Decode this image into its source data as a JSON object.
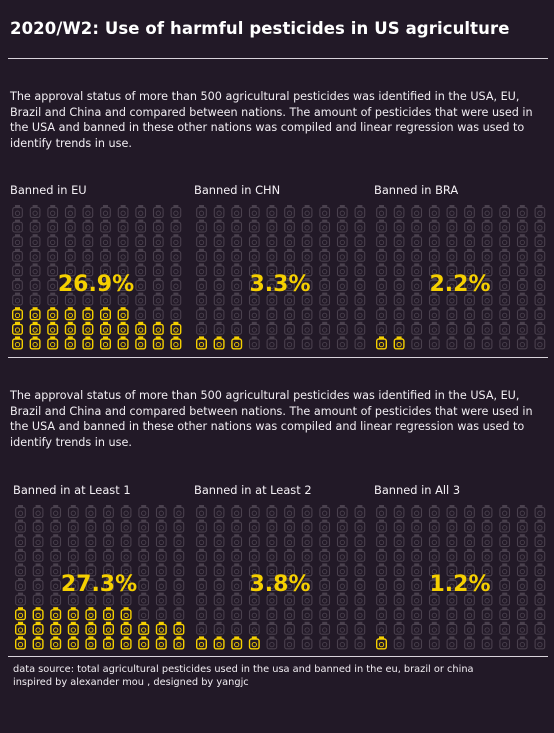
{
  "title": "2020/W2: Use of harmful pesticides in US agriculture",
  "description_1": "The approval status of more than 500 agricultural pesticides was identified in the USA, EU, Brazil and China and compared between nations. The amount of pesticides that were used in the USA and banned in these other nations was compiled and linear regression was used to identify trends in use.",
  "description_2": "The approval status of more than 500 agricultural pesticides was identified in the USA, EU, Brazil and China and compared between nations. The amount of pesticides that were used in the USA and banned in these other nations was compiled and linear regression was used to identify trends in use.",
  "footer": {
    "line1": "data source: total agricultural pesticides used in the usa and banned in the eu, brazil or china",
    "line2": "inspired by alexander mou ,  designed by yangjc"
  },
  "colors": {
    "background": "#221927",
    "highlight": "#f5d000",
    "icon_inactive": "#4a414e"
  },
  "icon": "pesticide-bottle-icon",
  "chart_data": [
    {
      "type": "waffle",
      "label": "Banned in EU",
      "percent_label": "26.9%",
      "value": 26.9,
      "grid": "10x10"
    },
    {
      "type": "waffle",
      "label": "Banned in CHN",
      "percent_label": "3.3%",
      "value": 3.3,
      "grid": "10x10"
    },
    {
      "type": "waffle",
      "label": "Banned in BRA",
      "percent_label": "2.2%",
      "value": 2.2,
      "grid": "10x10"
    },
    {
      "type": "waffle",
      "label": "Banned in at Least 1",
      "percent_label": "27.3%",
      "value": 27.3,
      "grid": "10x10"
    },
    {
      "type": "waffle",
      "label": "Banned in at Least 2",
      "percent_label": "3.8%",
      "value": 3.8,
      "grid": "10x10"
    },
    {
      "type": "waffle",
      "label": "Banned in All 3",
      "percent_label": "1.2%",
      "value": 1.2,
      "grid": "10x10"
    }
  ]
}
